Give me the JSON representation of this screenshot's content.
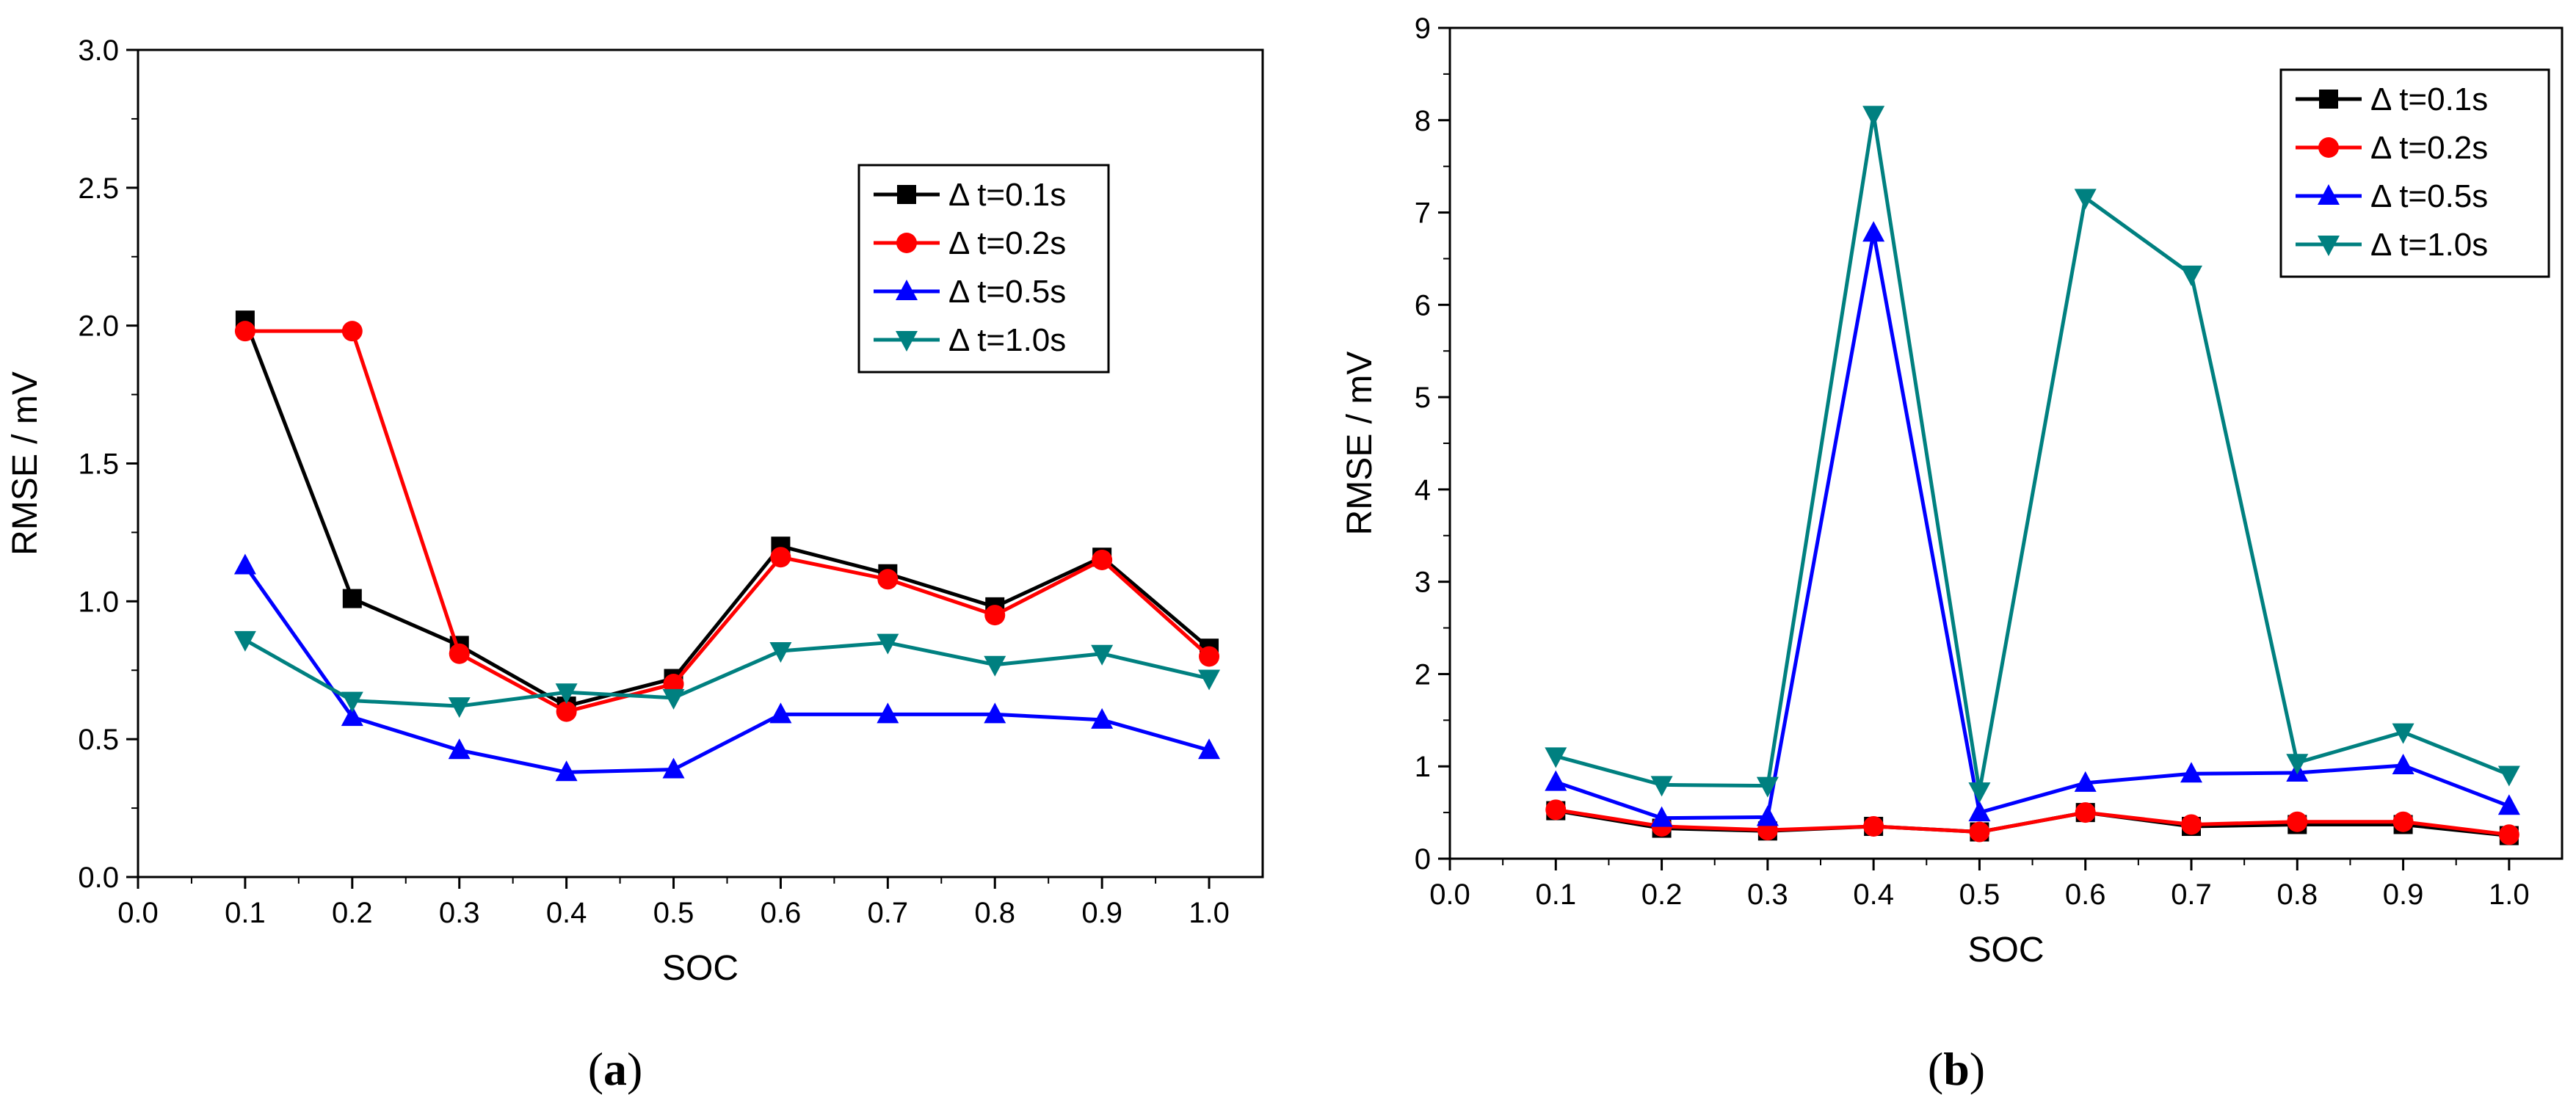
{
  "chart_data": [
    {
      "type": "line",
      "panel_label": "(a)",
      "panel_letter": "a",
      "xlabel": "SOC",
      "ylabel": "RMSE / mV",
      "xlim": [
        0.0,
        1.05
      ],
      "ylim": [
        0.0,
        3.0
      ],
      "xticks": [
        "0.0",
        "0.1",
        "0.2",
        "0.3",
        "0.4",
        "0.5",
        "0.6",
        "0.7",
        "0.8",
        "0.9",
        "1.0"
      ],
      "yticks": [
        "0.0",
        "0.5",
        "1.0",
        "1.5",
        "2.0",
        "2.5",
        "3.0"
      ],
      "legend_position": "upper-right",
      "x": [
        0.1,
        0.2,
        0.3,
        0.4,
        0.5,
        0.6,
        0.7,
        0.8,
        0.9,
        1.0
      ],
      "series": [
        {
          "name": "Δ t=0.1s",
          "color": "#000000",
          "marker": "square",
          "values": [
            2.02,
            1.01,
            0.84,
            0.62,
            0.72,
            1.2,
            1.1,
            0.98,
            1.16,
            0.83
          ]
        },
        {
          "name": "Δ t=0.2s",
          "color": "#ff0000",
          "marker": "circle",
          "values": [
            1.98,
            1.98,
            0.81,
            0.6,
            0.7,
            1.16,
            1.08,
            0.95,
            1.15,
            0.8
          ]
        },
        {
          "name": "Δ t=0.5s",
          "color": "#0000ff",
          "marker": "triangle-up",
          "values": [
            1.13,
            0.58,
            0.46,
            0.38,
            0.39,
            0.59,
            0.59,
            0.59,
            0.57,
            0.46
          ]
        },
        {
          "name": "Δ t=1.0s",
          "color": "#008080",
          "marker": "triangle-down",
          "values": [
            0.86,
            0.64,
            0.62,
            0.67,
            0.65,
            0.82,
            0.85,
            0.77,
            0.81,
            0.72
          ]
        }
      ]
    },
    {
      "type": "line",
      "panel_label": "(b)",
      "panel_letter": "b",
      "xlabel": "SOC",
      "ylabel": "RMSE / mV",
      "xlim": [
        0.0,
        1.05
      ],
      "ylim": [
        0,
        9
      ],
      "xticks": [
        "0.0",
        "0.1",
        "0.2",
        "0.3",
        "0.4",
        "0.5",
        "0.6",
        "0.7",
        "0.8",
        "0.9",
        "1.0"
      ],
      "yticks": [
        "0",
        "1",
        "2",
        "3",
        "4",
        "5",
        "6",
        "7",
        "8",
        "9"
      ],
      "legend_position": "upper-right",
      "x": [
        0.1,
        0.2,
        0.3,
        0.4,
        0.5,
        0.6,
        0.7,
        0.8,
        0.9,
        1.0
      ],
      "series": [
        {
          "name": "Δ t=0.1s",
          "color": "#000000",
          "marker": "square",
          "values": [
            0.52,
            0.33,
            0.3,
            0.35,
            0.29,
            0.5,
            0.35,
            0.37,
            0.37,
            0.25
          ]
        },
        {
          "name": "Δ t=0.2s",
          "color": "#ff0000",
          "marker": "circle",
          "values": [
            0.53,
            0.35,
            0.31,
            0.35,
            0.29,
            0.5,
            0.37,
            0.4,
            0.4,
            0.26
          ]
        },
        {
          "name": "Δ t=0.5s",
          "color": "#0000ff",
          "marker": "triangle-up",
          "values": [
            0.83,
            0.44,
            0.45,
            6.78,
            0.5,
            0.82,
            0.92,
            0.93,
            1.01,
            0.57
          ]
        },
        {
          "name": "Δ t=1.0s",
          "color": "#008080",
          "marker": "triangle-down",
          "values": [
            1.11,
            0.8,
            0.79,
            8.06,
            0.73,
            7.16,
            6.33,
            1.04,
            1.37,
            0.91
          ]
        }
      ]
    }
  ]
}
